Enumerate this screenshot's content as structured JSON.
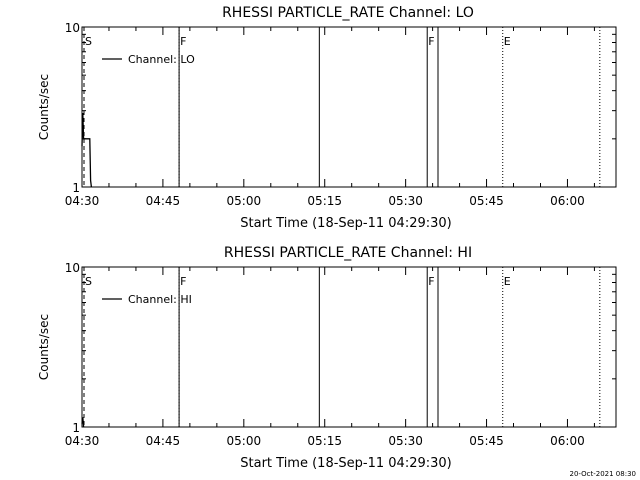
{
  "footer": {
    "timestamp": "20-Oct-2021 08:30"
  },
  "chart_data": [
    {
      "type": "line",
      "title": "RHESSI PARTICLE_RATE Channel: LO",
      "xlabel": "Start Time (18-Sep-11 04:29:30)",
      "ylabel": "Counts/sec",
      "y_scale": "log",
      "ylim": [
        1,
        10
      ],
      "xlim": [
        "04:30",
        "06:09"
      ],
      "x_ticks": [
        "04:30",
        "04:45",
        "05:00",
        "05:15",
        "05:30",
        "05:45",
        "06:00"
      ],
      "y_ticks": [
        "1",
        "10"
      ],
      "legend": {
        "placement": "top-left",
        "entries": [
          "Channel: LO"
        ]
      },
      "series": [
        {
          "name": "Channel: LO",
          "x": [
            "04:30",
            "04:30",
            "04:30",
            "04:31",
            "04:31",
            "04:31"
          ],
          "y": [
            1.8,
            2.9,
            2.0,
            2.0,
            1.1,
            1.0
          ]
        }
      ],
      "markers": [
        {
          "label": "S",
          "time": "04:30",
          "style": "dashed"
        },
        {
          "label": "F",
          "time": "04:48",
          "style": "dotted"
        },
        {
          "label": "",
          "time": "04:48",
          "style": "solid"
        },
        {
          "label": "",
          "time": "05:14",
          "style": "solid"
        },
        {
          "label": "F",
          "time": "05:34",
          "style": "solid"
        },
        {
          "label": "",
          "time": "05:36",
          "style": "solid"
        },
        {
          "label": "E",
          "time": "05:48",
          "style": "dotted"
        },
        {
          "label": "",
          "time": "06:06",
          "style": "dotted"
        }
      ]
    },
    {
      "type": "line",
      "title": "RHESSI PARTICLE_RATE Channel: HI",
      "xlabel": "Start Time (18-Sep-11 04:29:30)",
      "ylabel": "Counts/sec",
      "y_scale": "log",
      "ylim": [
        1,
        10
      ],
      "xlim": [
        "04:30",
        "06:09"
      ],
      "x_ticks": [
        "04:30",
        "04:45",
        "05:00",
        "05:15",
        "05:30",
        "05:45",
        "06:00"
      ],
      "y_ticks": [
        "1",
        "10"
      ],
      "legend": {
        "placement": "top-left",
        "entries": [
          "Channel: HI"
        ]
      },
      "series": [
        {
          "name": "Channel: HI",
          "x": [
            "04:30",
            "04:30",
            "04:30"
          ],
          "y": [
            1.05,
            1.15,
            1.0
          ]
        }
      ],
      "markers": [
        {
          "label": "S",
          "time": "04:30",
          "style": "dashed"
        },
        {
          "label": "F",
          "time": "04:48",
          "style": "dotted"
        },
        {
          "label": "",
          "time": "04:48",
          "style": "solid"
        },
        {
          "label": "",
          "time": "05:14",
          "style": "solid"
        },
        {
          "label": "F",
          "time": "05:34",
          "style": "solid"
        },
        {
          "label": "",
          "time": "05:36",
          "style": "solid"
        },
        {
          "label": "E",
          "time": "05:48",
          "style": "dotted"
        },
        {
          "label": "",
          "time": "06:06",
          "style": "dotted"
        }
      ]
    }
  ]
}
